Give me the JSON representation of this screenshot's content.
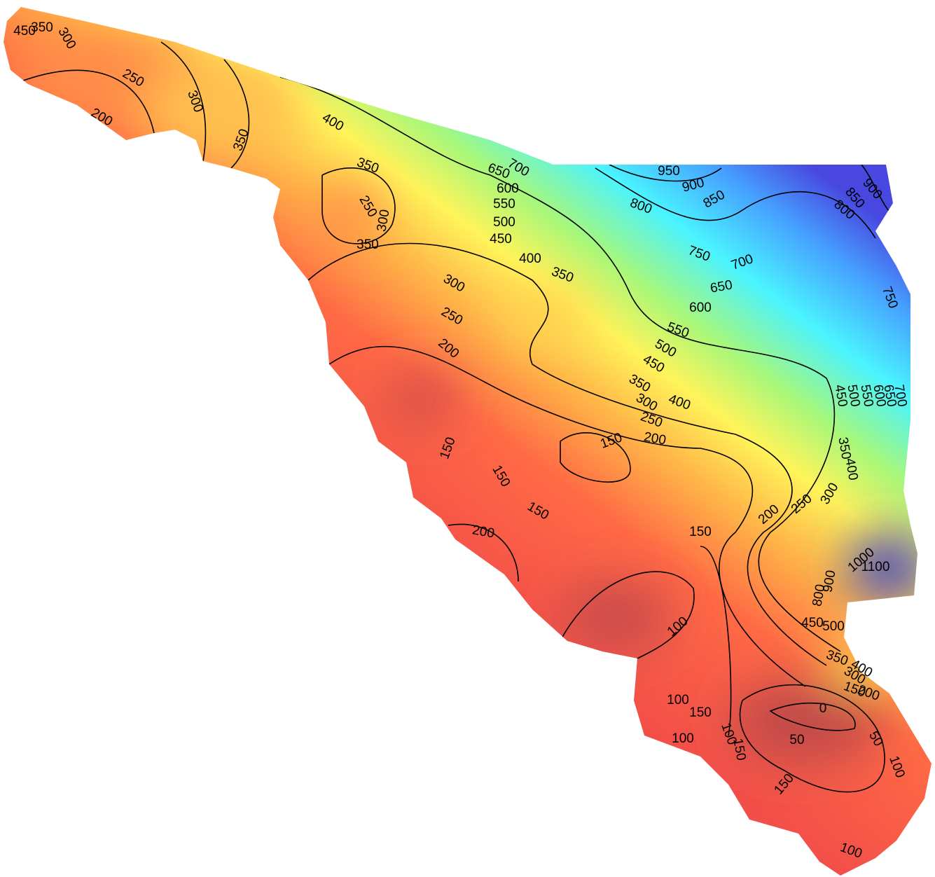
{
  "contour_labels": [
    350,
    300,
    450,
    250,
    200,
    300,
    350,
    400,
    350,
    250,
    300,
    350,
    700,
    650,
    600,
    550,
    500,
    450,
    400,
    350,
    300,
    250,
    200,
    950,
    900,
    850,
    800,
    900,
    850,
    800,
    750,
    700,
    650,
    600,
    550,
    500,
    450,
    350,
    400,
    300,
    250,
    200,
    750,
    450,
    500,
    550,
    600,
    650,
    700,
    350,
    400,
    300,
    250,
    200,
    150,
    150,
    150,
    150,
    150,
    200,
    100,
    450,
    500,
    350,
    400,
    300,
    150,
    200,
    0,
    50,
    50,
    100,
    100,
    150,
    100,
    100,
    150,
    150,
    100,
    1000,
    1100,
    900,
    800
  ]
}
